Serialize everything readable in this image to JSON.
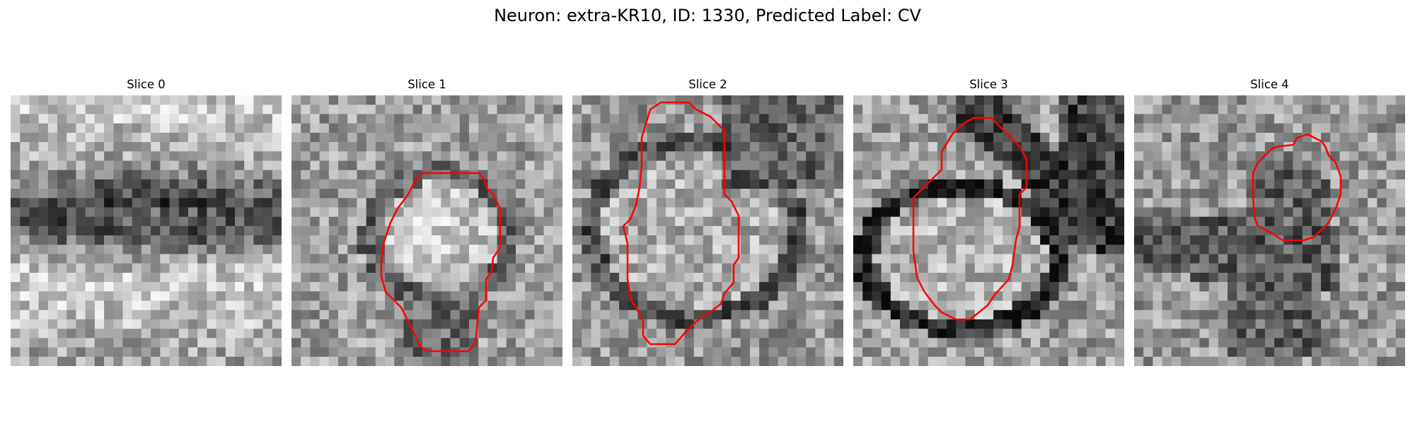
{
  "figure": {
    "title": "Neuron: extra-KR10, ID: 1330, Predicted Label: CV",
    "contour_color": "#ff0000",
    "colormap": "gray"
  },
  "panels": [
    {
      "title": "Slice 0",
      "has_contour": false,
      "pattern": "horizontal-dark-band"
    },
    {
      "title": "Slice 1",
      "has_contour": true,
      "pattern": "bright-blob-center"
    },
    {
      "title": "Slice 2",
      "has_contour": true,
      "pattern": "large-ring"
    },
    {
      "title": "Slice 3",
      "has_contour": true,
      "pattern": "dark-ring-lower"
    },
    {
      "title": "Slice 4",
      "has_contour": true,
      "pattern": "dark-cross"
    }
  ]
}
